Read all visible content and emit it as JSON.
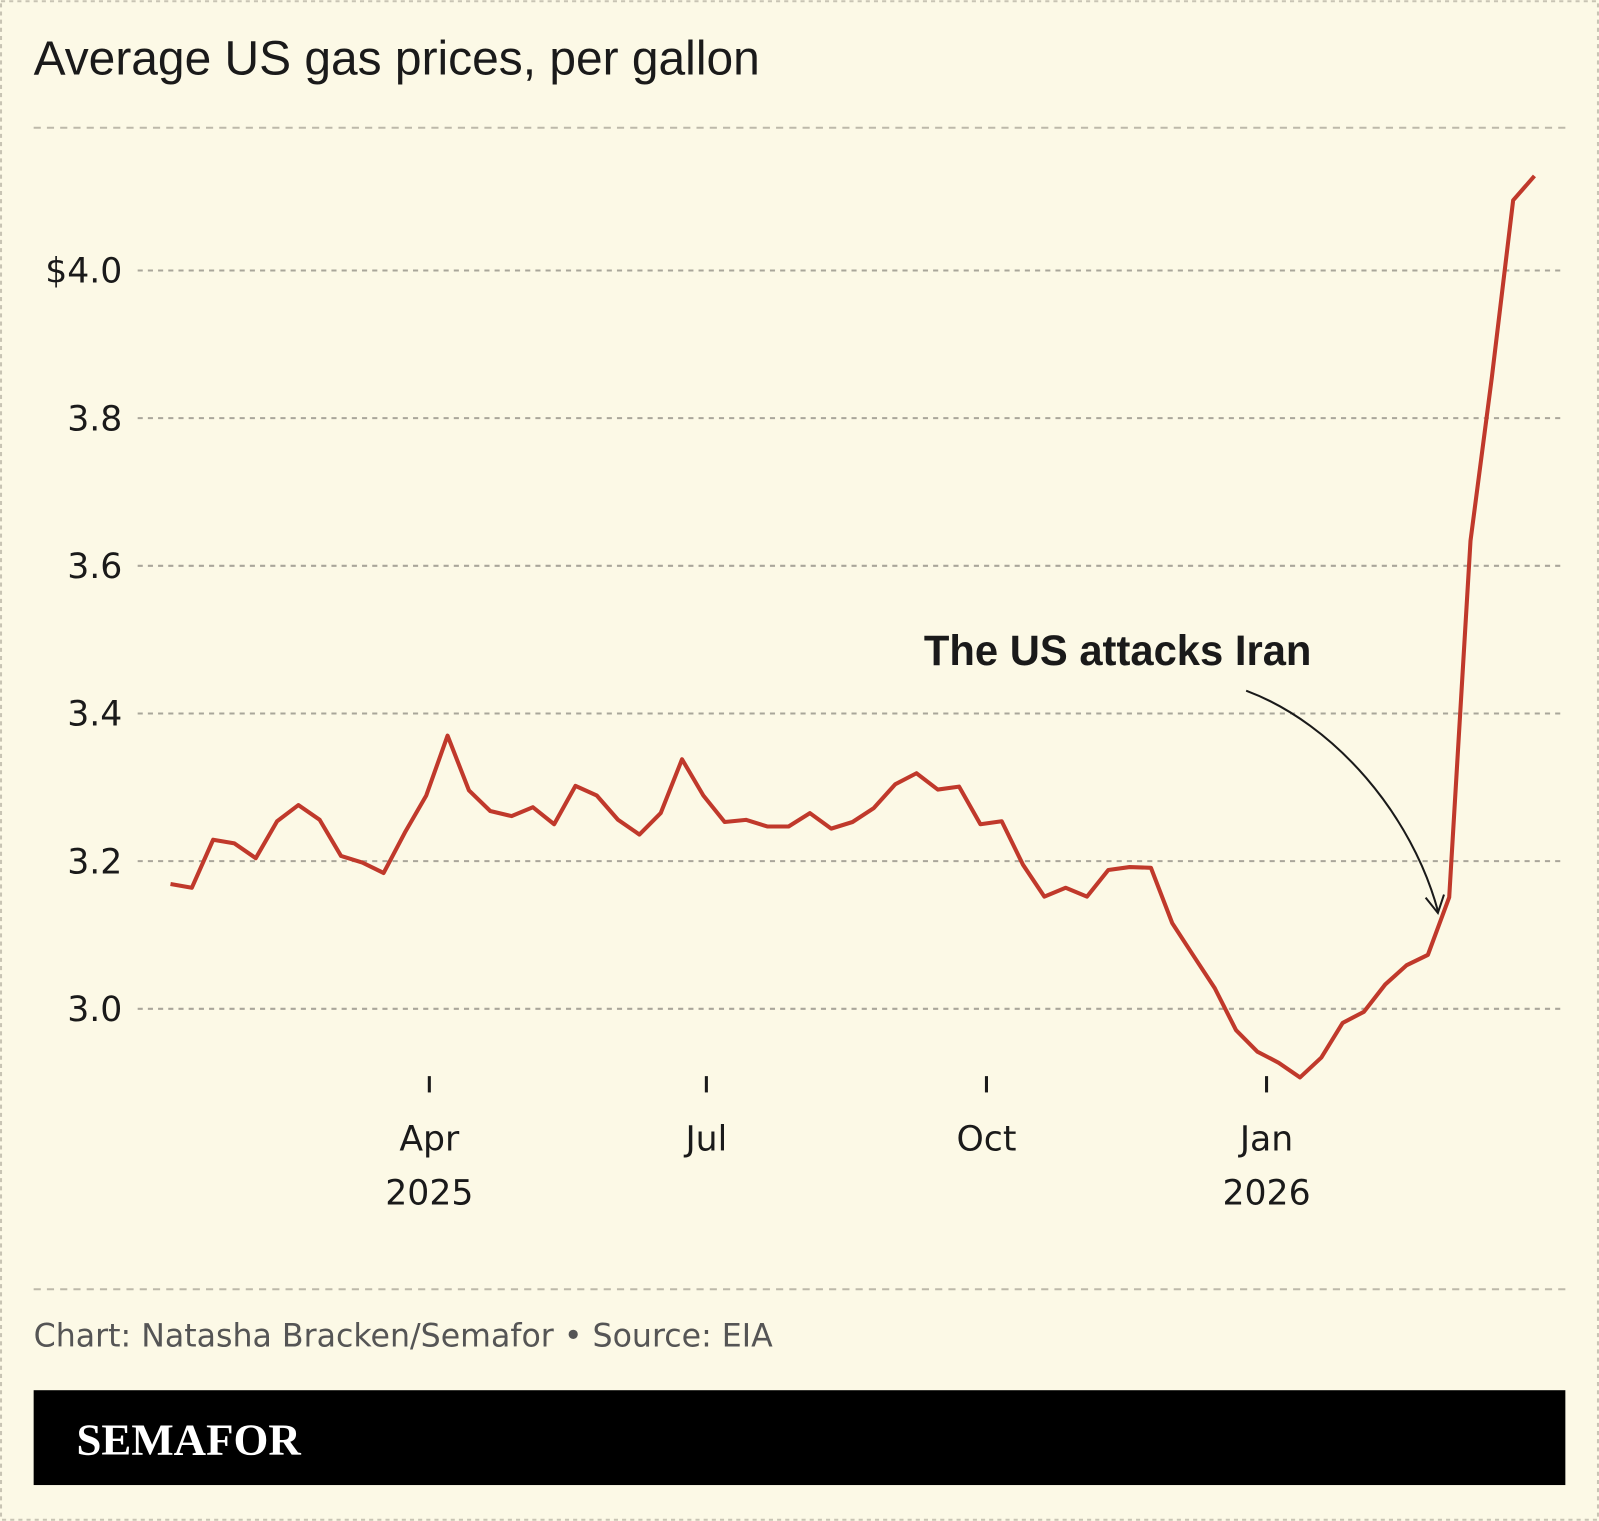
{
  "chart_data": {
    "type": "line",
    "title": "Average US gas prices, per gallon",
    "xlabel": "",
    "ylabel": "",
    "ylim": [
      2.88,
      4.2
    ],
    "yticks": [
      3.0,
      3.2,
      3.4,
      3.6,
      3.8,
      4.0
    ],
    "ytick_labels": [
      "3.0",
      "3.2",
      "3.4",
      "3.6",
      "3.8",
      "$4.0"
    ],
    "xticks": [
      {
        "date": "2025-04-01",
        "label": "Apr",
        "sublabel": "2025"
      },
      {
        "date": "2025-07-01",
        "label": "Jul",
        "sublabel": ""
      },
      {
        "date": "2025-10-01",
        "label": "Oct",
        "sublabel": ""
      },
      {
        "date": "2026-01-01",
        "label": "Jan",
        "sublabel": "2026"
      }
    ],
    "grid": true,
    "line_color": "#c0392b",
    "start_date": "2025-01-06",
    "frequency": "weekly",
    "values": [
      3.169,
      3.164,
      3.229,
      3.224,
      3.204,
      3.254,
      3.276,
      3.256,
      3.207,
      3.198,
      3.184,
      3.239,
      3.289,
      3.37,
      3.296,
      3.268,
      3.261,
      3.273,
      3.25,
      3.302,
      3.289,
      3.256,
      3.236,
      3.265,
      3.338,
      3.289,
      3.253,
      3.256,
      3.247,
      3.247,
      3.265,
      3.244,
      3.253,
      3.272,
      3.304,
      3.319,
      3.297,
      3.301,
      3.25,
      3.254,
      3.195,
      3.152,
      3.164,
      3.152,
      3.188,
      3.192,
      3.191,
      3.116,
      3.072,
      3.028,
      2.971,
      2.942,
      2.927,
      2.907,
      2.934,
      2.981,
      2.996,
      3.033,
      3.059,
      3.073,
      3.151,
      3.634,
      3.855,
      4.095,
      4.128
    ],
    "annotations": [
      {
        "text": "The US attacks Iran",
        "date": "2026-03-02"
      }
    ]
  },
  "credit": "Chart: Natasha Bracken/Semafor • Source: EIA",
  "logo": "SEMAFOR"
}
